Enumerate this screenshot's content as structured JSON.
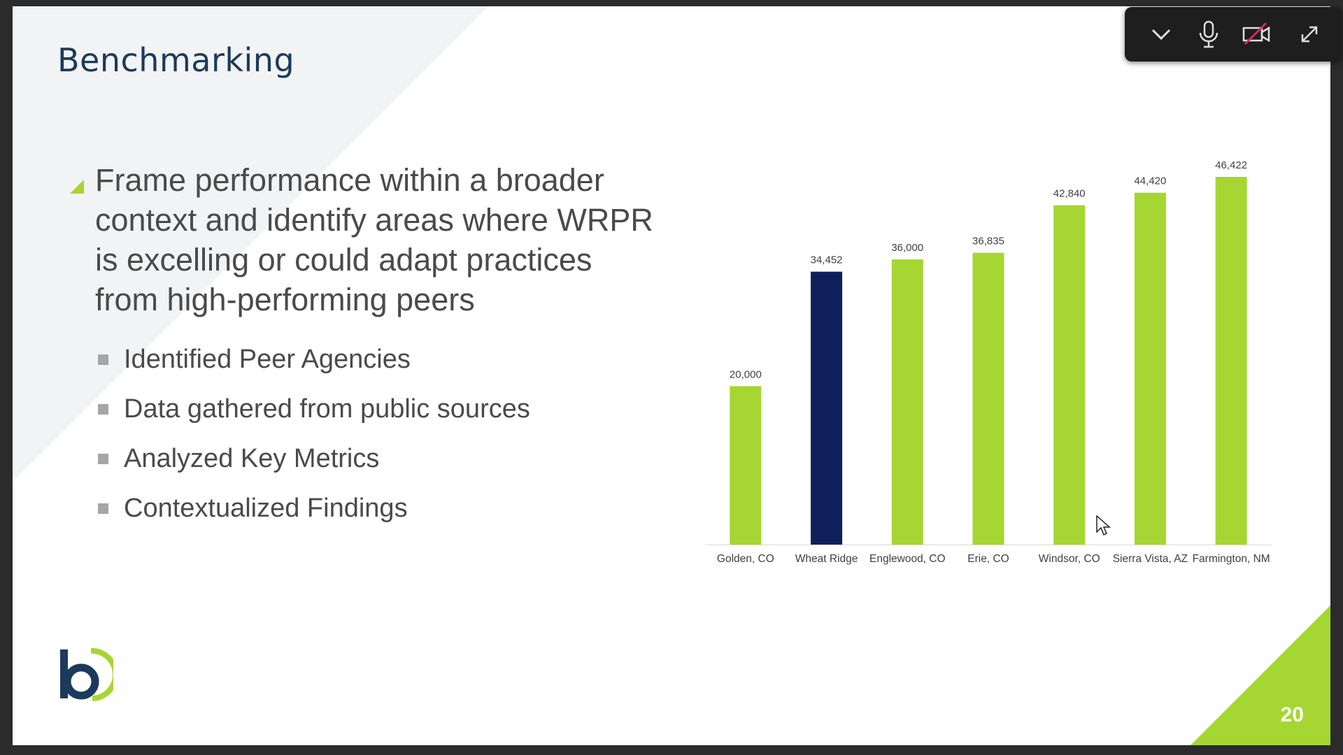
{
  "slide": {
    "title": "Benchmarking",
    "main_bullet": "Frame performance within a broader context and identify areas where WRPR is excelling or could adapt practices from high-performing peers",
    "sub_bullets": [
      "Identified Peer Agencies",
      "Data gathered from public sources",
      "Analyzed Key Metrics",
      "Contextualized Findings"
    ],
    "page_number": "20",
    "accent_color": "#a5d631",
    "highlight_color": "#0f1f5c"
  },
  "chart_data": {
    "type": "bar",
    "categories": [
      "Golden, CO",
      "Wheat Ridge",
      "Englewood, CO",
      "Erie, CO",
      "Windsor, CO",
      "Sierra Vista, AZ",
      "Farmington, NM"
    ],
    "values": [
      20000,
      34452,
      36000,
      36835,
      42840,
      44420,
      46422
    ],
    "value_labels": [
      "20,000",
      "34,452",
      "36,000",
      "36,835",
      "42,840",
      "44,420",
      "46,422"
    ],
    "highlight_category": "Wheat Ridge",
    "ylim": [
      0,
      46422
    ],
    "title": "",
    "xlabel": "",
    "ylabel": "",
    "grid": false,
    "legend": "none"
  },
  "presenter_controls": {
    "icons": [
      "chevron-down-icon",
      "microphone-icon",
      "camera-off-icon",
      "expand-icon"
    ]
  }
}
